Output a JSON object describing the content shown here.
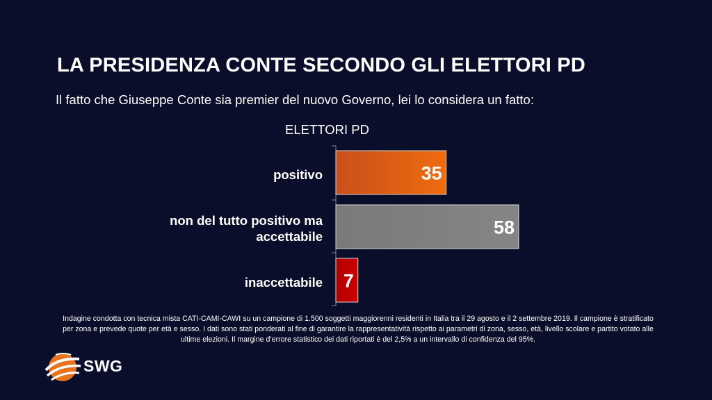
{
  "header": {
    "title": "LA PRESIDENZA CONTE SECONDO GLI ELETTORI PD",
    "question": "Il fatto che Giuseppe Conte sia premier del nuovo Governo, lei lo considera un fatto:"
  },
  "chart_data": {
    "type": "bar",
    "orientation": "horizontal",
    "title": "ELETTORI PD",
    "categories": [
      "positivo",
      "non del tutto positivo ma accettabile",
      "inaccettabile"
    ],
    "values": [
      35,
      58,
      7
    ],
    "bar_colors": [
      "#e06010",
      "#808080",
      "#c00000"
    ],
    "xlim": [
      0,
      60
    ],
    "data_labels": true,
    "grid": false
  },
  "footnote": "Indagine condotta con tecnica mista CATI-CAMI-CAWI su un campione di 1.500 soggetti maggiorenni residenti in Italia tra il 29 agosto e il  2 settembre 2019. Il campione è stratificato per zona e prevede quote per età e sesso. I dati sono stati ponderati al fine di garantire la rappresentatività rispetto ai parametri di zona, sesso, età, livello scolare e partito votato alle ultime elezioni. Il margine d’errore statistico dei dati riportati è del 2,5% a un intervallo di confidenza del 95%.",
  "brand": {
    "name": "SWG",
    "accent": "#f07010"
  }
}
